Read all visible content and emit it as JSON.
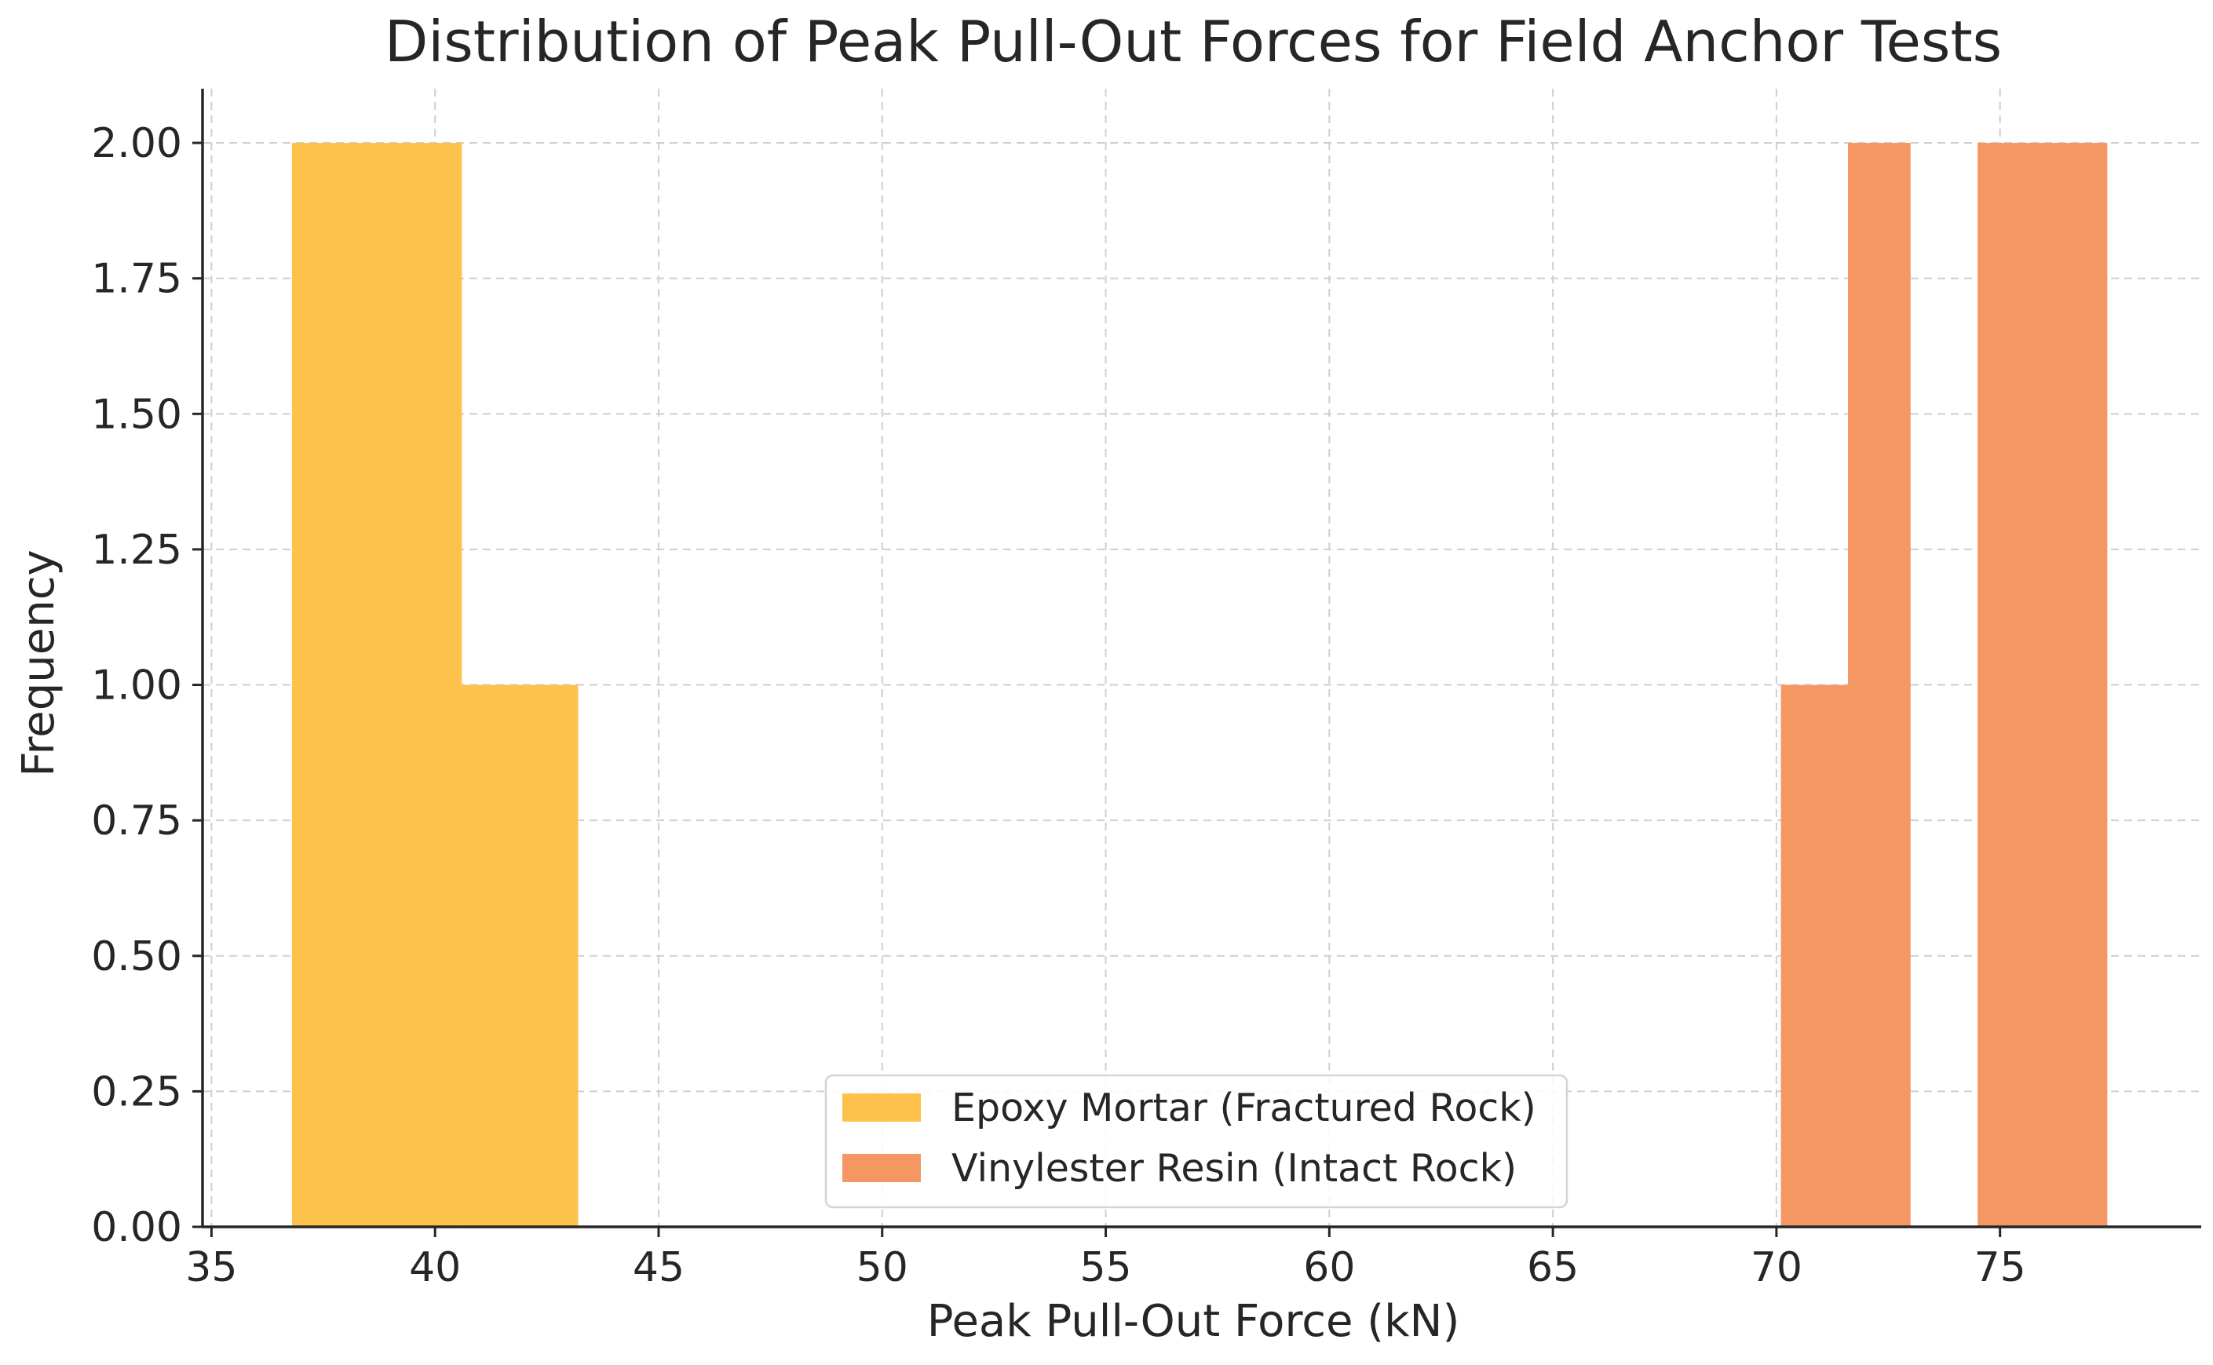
{
  "chart_data": {
    "type": "histogram",
    "title": "Distribution of Peak Pull-Out Forces for Field Anchor Tests",
    "xlabel": "Peak Pull-Out Force (kN)",
    "ylabel": "Frequency",
    "xlim": [
      34.8,
      79.5
    ],
    "ylim": [
      0,
      2.1
    ],
    "xticks": [
      35,
      40,
      45,
      50,
      55,
      60,
      65,
      70,
      75
    ],
    "xtick_labels": [
      "35",
      "40",
      "45",
      "50",
      "55",
      "60",
      "65",
      "70",
      "75"
    ],
    "yticks": [
      0,
      0.25,
      0.5,
      0.75,
      1.0,
      1.25,
      1.5,
      1.75,
      2.0
    ],
    "ytick_labels": [
      "0.00",
      "0.25",
      "0.50",
      "0.75",
      "1.00",
      "1.25",
      "1.50",
      "1.75",
      "2.00"
    ],
    "grid": true,
    "legend_position": "bottom-center",
    "series": [
      {
        "name": "Epoxy Mortar (Fractured Rock)",
        "color": "#fcc24b",
        "bins": [
          {
            "x0": 36.8,
            "x1": 40.6,
            "count": 2
          },
          {
            "x0": 40.6,
            "x1": 43.2,
            "count": 1
          }
        ]
      },
      {
        "name": "Vinylester Resin (Intact Rock)",
        "color": "#f49763",
        "bins": [
          {
            "x0": 70.1,
            "x1": 71.6,
            "count": 1
          },
          {
            "x0": 71.6,
            "x1": 73.0,
            "count": 2
          },
          {
            "x0": 74.5,
            "x1": 77.4,
            "count": 2
          }
        ]
      }
    ]
  }
}
